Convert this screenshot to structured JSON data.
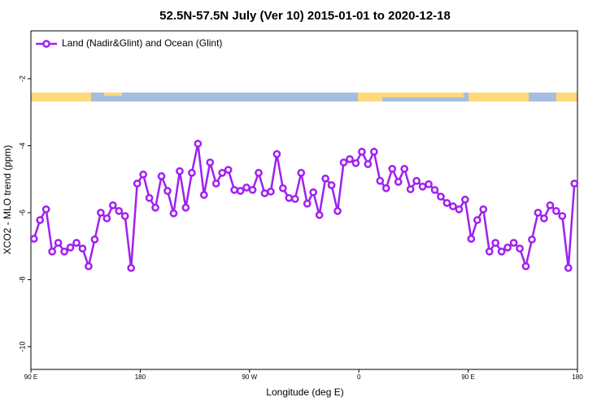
{
  "chart_data": {
    "type": "line",
    "title": "52.5N-57.5N July (Ver 10)   2015-01-01 to 2020-12-18",
    "x_label": "Longitude (deg E)",
    "y_label": "XCO2 - MLO trend (ppm)",
    "x": [
      92.5,
      97.5,
      102.5,
      107.5,
      112.5,
      117.5,
      122.5,
      127.5,
      132.5,
      137.5,
      142.5,
      147.5,
      152.5,
      157.5,
      162.5,
      167.5,
      172.5,
      177.5,
      182.5,
      187.5,
      192.5,
      197.5,
      202.5,
      207.5,
      212.5,
      217.5,
      222.5,
      227.5,
      232.5,
      237.5,
      242.5,
      247.5,
      252.5,
      257.5,
      262.5,
      267.5,
      272.5,
      277.5,
      282.5,
      287.5,
      292.5,
      297.5,
      302.5,
      307.5,
      312.5,
      317.5,
      322.5,
      327.5,
      332.5,
      337.5,
      342.5,
      347.5,
      352.5,
      357.5,
      362.5,
      367.5,
      372.5,
      377.5,
      382.5,
      387.5,
      392.5,
      397.5,
      402.5,
      407.5,
      412.5,
      417.5,
      422.5,
      427.5,
      432.5,
      437.5,
      442.5,
      447.5,
      452.5,
      457.5,
      462.5,
      467.5,
      472.5,
      477.5,
      482.5,
      487.5,
      492.5,
      497.5,
      502.5,
      507.5,
      512.5,
      517.5,
      522.5,
      527.5,
      532.5,
      537.5
    ],
    "series": [
      {
        "name": "Land (Nadir&Glint) and Ocean (Glint)",
        "color": "#a020f0",
        "values": [
          -6.78,
          -6.22,
          -5.9,
          -7.16,
          -6.9,
          -7.16,
          -7.04,
          -6.9,
          -7.07,
          -7.6,
          -6.8,
          -6.0,
          -6.17,
          -5.78,
          -5.95,
          -6.1,
          -7.65,
          -5.13,
          -4.86,
          -5.56,
          -5.85,
          -4.91,
          -5.35,
          -6.02,
          -4.76,
          -5.85,
          -4.81,
          -3.94,
          -5.47,
          -4.5,
          -5.13,
          -4.81,
          -4.72,
          -5.32,
          -5.35,
          -5.25,
          -5.32,
          -4.81,
          -5.42,
          -5.37,
          -4.25,
          -5.27,
          -5.56,
          -5.59,
          -4.81,
          -5.73,
          -5.39,
          -6.07,
          -4.98,
          -5.18,
          -5.95,
          -4.5,
          -4.4,
          -4.52,
          -4.18,
          -4.55,
          -4.18,
          -5.05,
          -5.27,
          -4.69,
          -5.08,
          -4.69,
          -5.3,
          -5.05,
          -5.22,
          -5.15,
          -5.32,
          -5.52,
          -5.71,
          -5.81,
          -5.9,
          -5.61,
          -6.78,
          -6.22,
          -5.9,
          -7.16,
          -6.9,
          -7.16,
          -7.04,
          -6.9,
          -7.07,
          -7.6,
          -6.8,
          -6.0,
          -6.17,
          -5.78,
          -5.95,
          -6.1,
          -7.65,
          -5.13
        ]
      }
    ],
    "xlim": [
      90,
      540
    ],
    "xticks": [
      {
        "value": 90,
        "label": "90 E"
      },
      180,
      {
        "value": 270,
        "label": "90 W"
      },
      {
        "value": 360,
        "label": "0"
      },
      {
        "value": 450,
        "label": "90 E"
      },
      {
        "value": 540,
        "label": "180"
      }
    ],
    "ylim": [
      -10.68,
      -0.57
    ],
    "yticks": [
      -2,
      -4,
      -6,
      -8,
      -10
    ],
    "legend": "top-left"
  }
}
